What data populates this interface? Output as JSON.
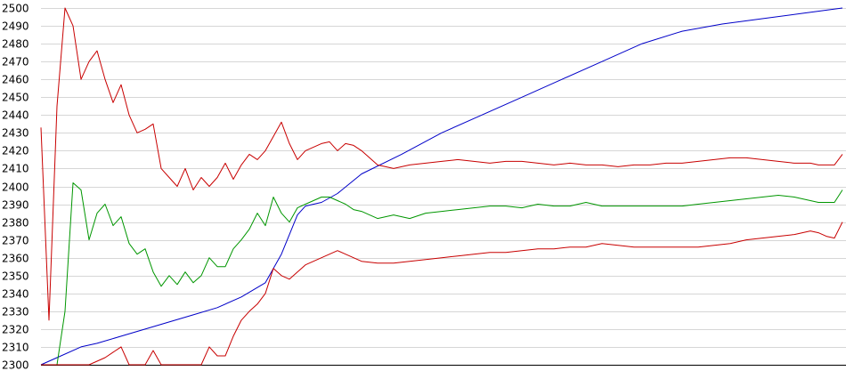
{
  "chart_data": {
    "type": "line",
    "ylim": [
      2300,
      2500
    ],
    "yticks": [
      2300,
      2310,
      2320,
      2330,
      2340,
      2350,
      2360,
      2370,
      2380,
      2390,
      2400,
      2410,
      2420,
      2430,
      2440,
      2450,
      2460,
      2470,
      2480,
      2490,
      2500
    ],
    "xlim": [
      0,
      100
    ],
    "grid": true,
    "legend": "none",
    "series": [
      {
        "color": "#0000c8",
        "x": [
          0,
          2,
          5,
          7,
          10,
          13,
          16,
          19,
          22,
          25,
          28,
          30,
          32,
          33,
          35,
          37,
          40,
          45,
          50,
          55,
          60,
          65,
          70,
          75,
          80,
          85,
          90,
          95,
          100
        ],
        "values": [
          2300,
          2304,
          2310,
          2312,
          2316,
          2320,
          2324,
          2328,
          2332,
          2338,
          2346,
          2362,
          2384,
          2389,
          2391,
          2396,
          2407,
          2418,
          2430,
          2440,
          2450,
          2460,
          2470,
          2480,
          2487,
          2491,
          2494,
          2497,
          2500
        ]
      },
      {
        "color": "#009600",
        "x": [
          0,
          1,
          2,
          3,
          4,
          5,
          6,
          7,
          8,
          9,
          10,
          11,
          12,
          13,
          14,
          15,
          16,
          17,
          18,
          19,
          20,
          21,
          22,
          23,
          24,
          25,
          26,
          27,
          28,
          29,
          30,
          31,
          32,
          33,
          34,
          35,
          36,
          37,
          38,
          39,
          40,
          42,
          44,
          46,
          48,
          50,
          52,
          54,
          56,
          58,
          60,
          62,
          64,
          66,
          68,
          70,
          72,
          74,
          76,
          78,
          80,
          82,
          84,
          86,
          88,
          90,
          92,
          94,
          95,
          96,
          97,
          98,
          99,
          100
        ],
        "values": [
          2300,
          2300,
          2300,
          2330,
          2402,
          2398,
          2370,
          2385,
          2390,
          2378,
          2383,
          2368,
          2362,
          2365,
          2352,
          2344,
          2350,
          2345,
          2352,
          2346,
          2350,
          2360,
          2355,
          2355,
          2365,
          2370,
          2376,
          2385,
          2378,
          2394,
          2385,
          2380,
          2388,
          2390,
          2392,
          2394,
          2394,
          2392,
          2390,
          2387,
          2386,
          2382,
          2384,
          2382,
          2385,
          2386,
          2387,
          2388,
          2389,
          2389,
          2388,
          2390,
          2389,
          2389,
          2391,
          2389,
          2389,
          2389,
          2389,
          2389,
          2389,
          2390,
          2391,
          2392,
          2393,
          2394,
          2395,
          2394,
          2393,
          2392,
          2391,
          2391,
          2391,
          2398
        ]
      },
      {
        "color": "#c80000",
        "x": [
          0,
          1,
          2,
          3,
          4,
          5,
          6,
          7,
          8,
          9,
          10,
          11,
          12,
          13,
          14,
          15,
          16,
          17,
          18,
          19,
          20,
          21,
          22,
          23,
          24,
          25,
          26,
          27,
          28,
          29,
          30,
          31,
          32,
          33,
          34,
          35,
          36,
          37,
          38,
          39,
          40,
          42,
          44,
          46,
          48,
          50,
          52,
          54,
          56,
          58,
          60,
          62,
          64,
          66,
          68,
          70,
          72,
          74,
          76,
          78,
          80,
          82,
          84,
          86,
          88,
          90,
          92,
          94,
          95,
          96,
          97,
          98,
          99,
          100
        ],
        "values": [
          2433,
          2325,
          2445,
          2500,
          2490,
          2460,
          2470,
          2476,
          2460,
          2447,
          2457,
          2440,
          2430,
          2432,
          2435,
          2410,
          2405,
          2400,
          2410,
          2398,
          2405,
          2400,
          2405,
          2413,
          2404,
          2412,
          2418,
          2415,
          2420,
          2428,
          2436,
          2424,
          2415,
          2420,
          2422,
          2424,
          2425,
          2420,
          2424,
          2423,
          2420,
          2412,
          2410,
          2412,
          2413,
          2414,
          2415,
          2414,
          2413,
          2414,
          2414,
          2413,
          2412,
          2413,
          2412,
          2412,
          2411,
          2412,
          2412,
          2413,
          2413,
          2414,
          2415,
          2416,
          2416,
          2415,
          2414,
          2413,
          2413,
          2413,
          2412,
          2412,
          2412,
          2418
        ]
      },
      {
        "color": "#c80000",
        "x": [
          0,
          2,
          4,
          6,
          8,
          10,
          11,
          12,
          13,
          14,
          15,
          16,
          17,
          18,
          19,
          20,
          21,
          22,
          23,
          24,
          25,
          26,
          27,
          28,
          29,
          30,
          31,
          32,
          33,
          34,
          35,
          36,
          37,
          38,
          39,
          40,
          42,
          44,
          46,
          48,
          50,
          52,
          54,
          56,
          58,
          60,
          62,
          64,
          66,
          68,
          70,
          72,
          74,
          76,
          78,
          80,
          82,
          84,
          86,
          88,
          90,
          92,
          94,
          95,
          96,
          97,
          98,
          99,
          100
        ],
        "values": [
          2300,
          2300,
          2300,
          2300,
          2304,
          2310,
          2300,
          2300,
          2300,
          2308,
          2300,
          2300,
          2300,
          2300,
          2300,
          2300,
          2310,
          2305,
          2305,
          2316,
          2325,
          2330,
          2334,
          2340,
          2354,
          2350,
          2348,
          2352,
          2356,
          2358,
          2360,
          2362,
          2364,
          2362,
          2360,
          2358,
          2357,
          2357,
          2358,
          2359,
          2360,
          2361,
          2362,
          2363,
          2363,
          2364,
          2365,
          2365,
          2366,
          2366,
          2368,
          2367,
          2366,
          2366,
          2366,
          2366,
          2366,
          2367,
          2368,
          2370,
          2371,
          2372,
          2373,
          2374,
          2375,
          2374,
          2372,
          2371,
          2380
        ]
      }
    ]
  }
}
